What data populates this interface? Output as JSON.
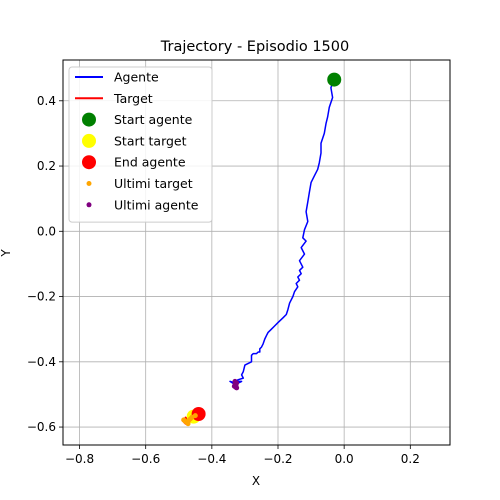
{
  "chart_data": {
    "type": "line",
    "title": "Trajectory - Episodio 1500",
    "xlabel": "X",
    "ylabel": "Y",
    "xlim": [
      -0.85,
      0.32
    ],
    "ylim": [
      -0.655,
      0.525
    ],
    "xticks": [
      -0.8,
      -0.6,
      -0.4,
      -0.2,
      0.0,
      0.2
    ],
    "xtick_labels": [
      "−0.8",
      "−0.6",
      "−0.4",
      "−0.2",
      "0.0",
      "0.2"
    ],
    "yticks": [
      -0.6,
      -0.4,
      -0.2,
      0.0,
      0.2,
      0.4
    ],
    "ytick_labels": [
      "−0.6",
      "−0.4",
      "−0.2",
      "0.0",
      "0.2",
      "0.4"
    ],
    "grid": true,
    "legend_position": "top-left",
    "series": [
      {
        "name": "Agente",
        "kind": "line",
        "color": "#0000ff",
        "x": [
          -0.03,
          -0.04,
          -0.035,
          -0.045,
          -0.05,
          -0.055,
          -0.06,
          -0.07,
          -0.07,
          -0.075,
          -0.08,
          -0.09,
          -0.1,
          -0.105,
          -0.11,
          -0.115,
          -0.11,
          -0.12,
          -0.125,
          -0.115,
          -0.13,
          -0.12,
          -0.135,
          -0.125,
          -0.135,
          -0.13,
          -0.14,
          -0.135,
          -0.145,
          -0.14,
          -0.15,
          -0.155,
          -0.165,
          -0.17,
          -0.175,
          -0.185,
          -0.19,
          -0.2,
          -0.21,
          -0.22,
          -0.23,
          -0.235,
          -0.24,
          -0.245,
          -0.25,
          -0.255,
          -0.255,
          -0.26,
          -0.265,
          -0.275,
          -0.28,
          -0.28,
          -0.3,
          -0.305,
          -0.31,
          -0.305,
          -0.32,
          -0.33,
          -0.31,
          -0.33,
          -0.345,
          -0.33,
          -0.325
        ],
        "y": [
          0.465,
          0.44,
          0.41,
          0.38,
          0.35,
          0.33,
          0.3,
          0.27,
          0.24,
          0.21,
          0.19,
          0.17,
          0.15,
          0.12,
          0.09,
          0.06,
          0.03,
          0.005,
          -0.02,
          -0.03,
          -0.05,
          -0.07,
          -0.09,
          -0.11,
          -0.12,
          -0.13,
          -0.14,
          -0.15,
          -0.16,
          -0.17,
          -0.185,
          -0.2,
          -0.22,
          -0.24,
          -0.255,
          -0.265,
          -0.27,
          -0.28,
          -0.29,
          -0.3,
          -0.31,
          -0.32,
          -0.33,
          -0.345,
          -0.355,
          -0.36,
          -0.37,
          -0.37,
          -0.375,
          -0.375,
          -0.38,
          -0.4,
          -0.41,
          -0.43,
          -0.44,
          -0.45,
          -0.455,
          -0.46,
          -0.46,
          -0.47,
          -0.46,
          -0.465,
          -0.48
        ]
      },
      {
        "name": "Target",
        "kind": "line",
        "color": "#ff0000",
        "x": [
          -0.44,
          -0.45,
          -0.465,
          -0.47,
          -0.48,
          -0.475,
          -0.49,
          -0.48,
          -0.47,
          -0.485,
          -0.475,
          -0.47
        ],
        "y": [
          -0.56,
          -0.57,
          -0.565,
          -0.575,
          -0.57,
          -0.585,
          -0.58,
          -0.59,
          -0.58,
          -0.575,
          -0.59,
          -0.585
        ]
      },
      {
        "name": "Start agente",
        "kind": "point",
        "color": "#008000",
        "size": 7,
        "x": [
          -0.03
        ],
        "y": [
          0.465
        ]
      },
      {
        "name": "Start target",
        "kind": "point",
        "color": "#ffff00",
        "size": 7,
        "x": [
          -0.455
        ],
        "y": [
          -0.568
        ]
      },
      {
        "name": "End agente",
        "kind": "point",
        "color": "#ff0000",
        "size": 7,
        "x": [
          -0.44
        ],
        "y": [
          -0.56
        ]
      },
      {
        "name": "Ultimi target",
        "kind": "point",
        "color": "#ffa500",
        "size": 2.5,
        "x": [
          -0.45,
          -0.46,
          -0.465,
          -0.47,
          -0.475,
          -0.48,
          -0.485,
          -0.472
        ],
        "y": [
          -0.565,
          -0.57,
          -0.575,
          -0.58,
          -0.585,
          -0.583,
          -0.578,
          -0.59
        ]
      },
      {
        "name": "Ultimi agente",
        "kind": "point",
        "color": "#800080",
        "size": 2.5,
        "x": [
          -0.33,
          -0.325,
          -0.33,
          -0.327,
          -0.332,
          -0.328,
          -0.325,
          -0.33
        ],
        "y": [
          -0.46,
          -0.465,
          -0.47,
          -0.472,
          -0.475,
          -0.478,
          -0.48,
          -0.468
        ]
      }
    ]
  }
}
